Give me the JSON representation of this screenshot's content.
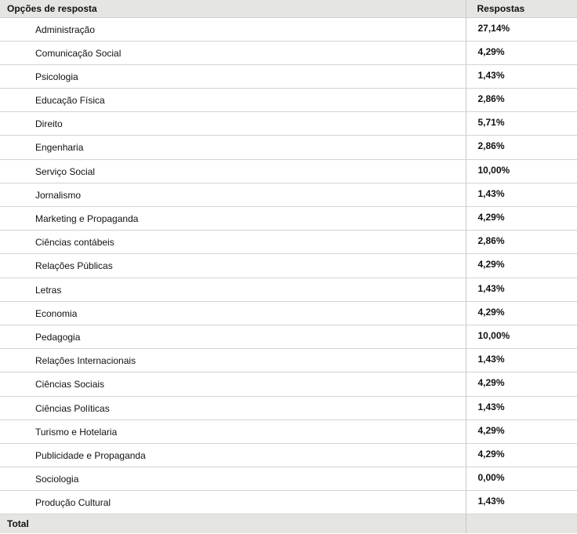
{
  "header": {
    "answer_label": "Opções de resposta",
    "responses_label": "Respostas"
  },
  "rows": [
    {
      "option": "Administração",
      "percent": "27,14%"
    },
    {
      "option": "Comunicação Social",
      "percent": "4,29%"
    },
    {
      "option": "Psicologia",
      "percent": "1,43%"
    },
    {
      "option": "Educação Física",
      "percent": "2,86%"
    },
    {
      "option": "Direito",
      "percent": "5,71%"
    },
    {
      "option": "Engenharia",
      "percent": "2,86%"
    },
    {
      "option": "Serviço Social",
      "percent": "10,00%"
    },
    {
      "option": "Jornalismo",
      "percent": "1,43%"
    },
    {
      "option": "Marketing e Propaganda",
      "percent": "4,29%"
    },
    {
      "option": "Ciências contábeis",
      "percent": "2,86%"
    },
    {
      "option": "Relações Públicas",
      "percent": "4,29%"
    },
    {
      "option": "Letras",
      "percent": "1,43%"
    },
    {
      "option": "Economia",
      "percent": "4,29%"
    },
    {
      "option": "Pedagogia",
      "percent": "10,00%"
    },
    {
      "option": "Relações Internacionais",
      "percent": "1,43%"
    },
    {
      "option": "Ciências Sociais",
      "percent": "4,29%"
    },
    {
      "option": "Ciências Políticas",
      "percent": "1,43%"
    },
    {
      "option": "Turismo e Hotelaria",
      "percent": "4,29%"
    },
    {
      "option": "Publicidade e Propaganda",
      "percent": "4,29%"
    },
    {
      "option": "Sociologia",
      "percent": "0,00%"
    },
    {
      "option": "Produção Cultural",
      "percent": "1,43%"
    }
  ],
  "footer": {
    "total_label": "Total",
    "total_value": ""
  }
}
